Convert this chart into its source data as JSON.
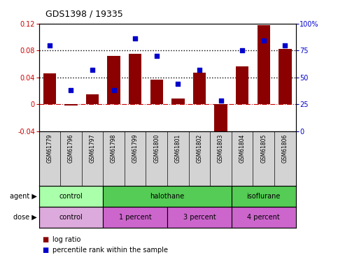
{
  "title": "GDS1398 / 19335",
  "samples": [
    "GSM61779",
    "GSM61796",
    "GSM61797",
    "GSM61798",
    "GSM61799",
    "GSM61800",
    "GSM61801",
    "GSM61802",
    "GSM61803",
    "GSM61804",
    "GSM61805",
    "GSM61806"
  ],
  "log_ratio": [
    0.046,
    -0.002,
    0.015,
    0.072,
    0.075,
    0.037,
    0.008,
    0.047,
    -0.047,
    0.056,
    0.118,
    0.082
  ],
  "percentile_rank": [
    80,
    38,
    57,
    38,
    86,
    70,
    44,
    57,
    28,
    75,
    84,
    80
  ],
  "bar_color": "#8B0000",
  "dot_color": "#0000CC",
  "ylim_left": [
    -0.04,
    0.12
  ],
  "ylim_right": [
    0,
    100
  ],
  "yticks_left": [
    -0.04,
    0.0,
    0.04,
    0.08,
    0.12
  ],
  "yticks_right": [
    0,
    25,
    50,
    75,
    100
  ],
  "ytick_labels_right": [
    "0",
    "25",
    "50",
    "75",
    "100%"
  ],
  "hline_y0_color": "#CC0000",
  "hline_dot_color": "#000000",
  "agent_groups": [
    {
      "label": "control",
      "start": 0,
      "end": 3,
      "color": "#AAFFAA"
    },
    {
      "label": "halothane",
      "start": 3,
      "end": 9,
      "color": "#55CC55"
    },
    {
      "label": "isoflurane",
      "start": 9,
      "end": 12,
      "color": "#55CC55"
    }
  ],
  "dose_groups": [
    {
      "label": "control",
      "start": 0,
      "end": 3,
      "color": "#DDAADD"
    },
    {
      "label": "1 percent",
      "start": 3,
      "end": 6,
      "color": "#CC66CC"
    },
    {
      "label": "3 percent",
      "start": 6,
      "end": 9,
      "color": "#CC66CC"
    },
    {
      "label": "4 percent",
      "start": 9,
      "end": 12,
      "color": "#CC66CC"
    }
  ],
  "legend_label_ratio": "log ratio",
  "legend_label_pct": "percentile rank within the sample",
  "agent_label": "agent",
  "dose_label": "dose",
  "sample_box_color": "#D3D3D3"
}
